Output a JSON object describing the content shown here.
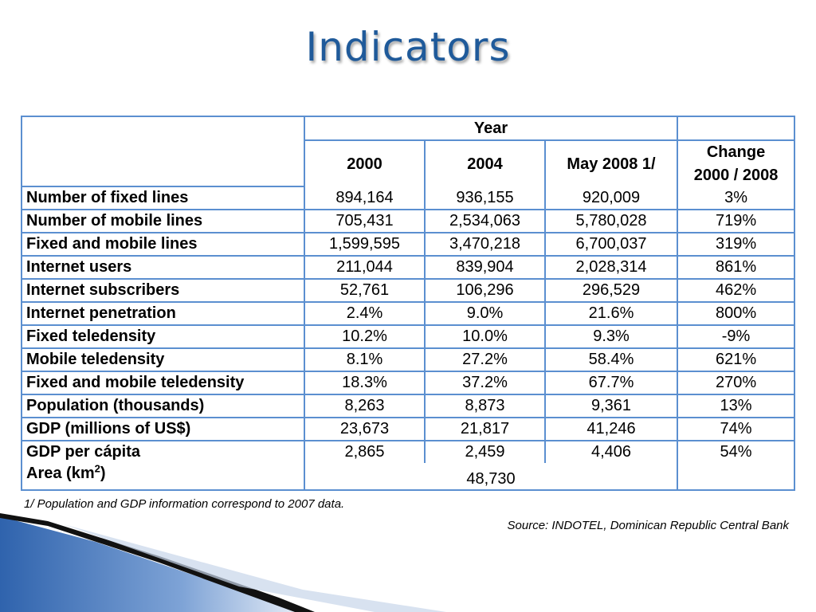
{
  "title": "Indicators",
  "table": {
    "group_header": "Year",
    "columns": [
      "2000",
      "2004",
      "May 2008 1/"
    ],
    "change_header_line1": "Change",
    "change_header_line2": "2000 / 2008",
    "rows": [
      {
        "label": "Number of fixed lines",
        "v2000": "894,164",
        "v2004": "936,155",
        "v2008": "920,009",
        "change": "3%"
      },
      {
        "label": "Number of mobile lines",
        "v2000": "705,431",
        "v2004": "2,534,063",
        "v2008": "5,780,028",
        "change": "719%"
      },
      {
        "label": "Fixed and mobile lines",
        "v2000": "1,599,595",
        "v2004": "3,470,218",
        "v2008": "6,700,037",
        "change": "319%"
      },
      {
        "label": "Internet users",
        "v2000": "211,044",
        "v2004": "839,904",
        "v2008": "2,028,314",
        "change": "861%"
      },
      {
        "label": "Internet subscribers",
        "v2000": "52,761",
        "v2004": "106,296",
        "v2008": "296,529",
        "change": "462%"
      },
      {
        "label": "Internet penetration",
        "v2000": "2.4%",
        "v2004": "9.0%",
        "v2008": "21.6%",
        "change": "800%"
      },
      {
        "label": "Fixed teledensity",
        "v2000": "10.2%",
        "v2004": "10.0%",
        "v2008": "9.3%",
        "change": "-9%"
      },
      {
        "label": "Mobile teledensity",
        "v2000": "8.1%",
        "v2004": "27.2%",
        "v2008": "58.4%",
        "change": "621%"
      },
      {
        "label": "Fixed and mobile teledensity",
        "v2000": "18.3%",
        "v2004": "37.2%",
        "v2008": "67.7%",
        "change": "270%"
      },
      {
        "label": "Population (thousands)",
        "v2000": "8,263",
        "v2004": "8,873",
        "v2008": "9,361",
        "change": "13%"
      },
      {
        "label": "GDP (millions of US$)",
        "v2000": "23,673",
        "v2004": "21,817",
        "v2008": "41,246",
        "change": "74%"
      },
      {
        "label": "GDP per cápita",
        "v2000": "2,865",
        "v2004": "2,459",
        "v2008": "4,406",
        "change": "54%"
      }
    ],
    "area": {
      "label_prefix": "Area (km",
      "label_sup": "2",
      "label_suffix": ")",
      "value": "48,730"
    }
  },
  "footnote": "1/ Population and GDP information correspond to 2007 data.",
  "source": "Source: INDOTEL, Dominican Republic Central Bank",
  "colors": {
    "title": "#1f5a9a",
    "table_border": "#5b8fd0",
    "decor_blue": "#2f63ad",
    "decor_dark": "#111111"
  }
}
